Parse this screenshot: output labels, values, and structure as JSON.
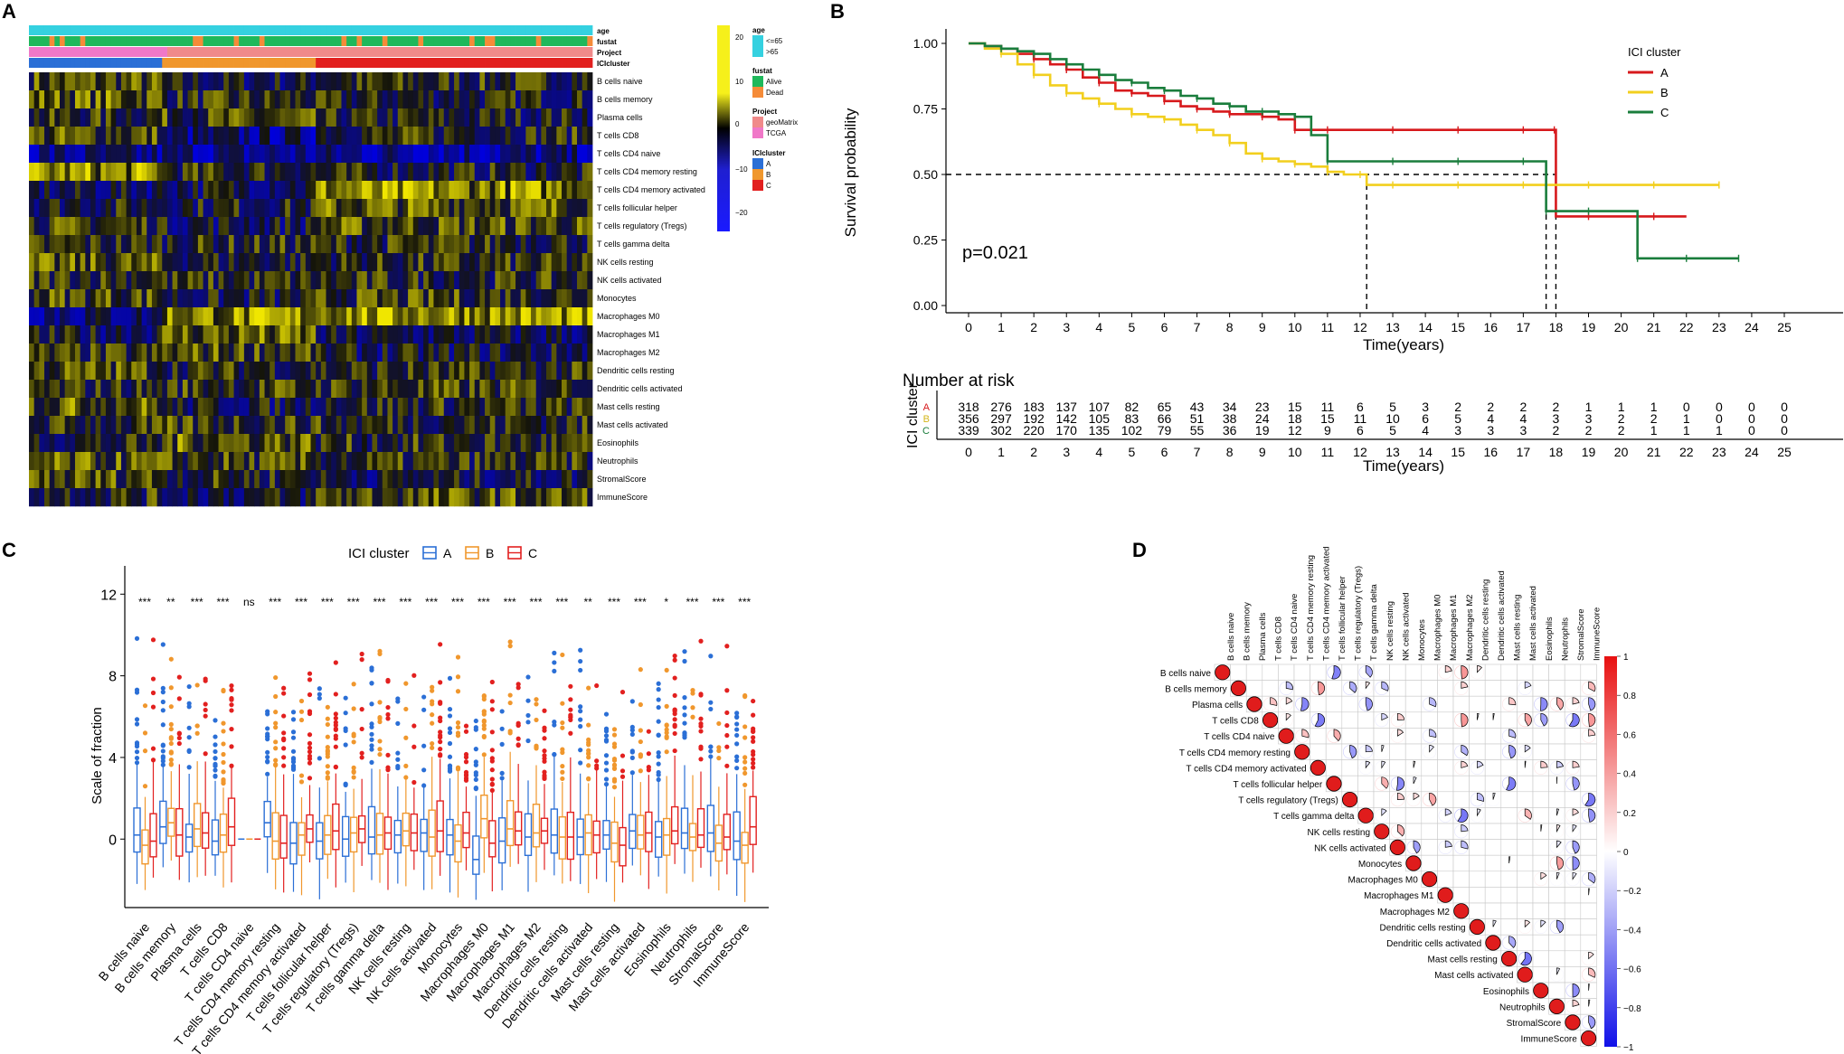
{
  "panel_labels": {
    "a": "A",
    "b": "B",
    "c": "C",
    "d": "D"
  },
  "colors": {
    "A": "#d7191c",
    "B": "#f2cf1e",
    "C": "#1a7d3c",
    "boxA": "#2b6fd6",
    "boxB": "#f0972d",
    "boxC": "#e2201f",
    "age1": "#35d1e0",
    "age2": "#16b5b5",
    "alive": "#1fb85b",
    "dead": "#f58b38",
    "geo": "#f08a8a",
    "tcga": "#f078c8"
  },
  "chart_data": [
    {
      "id": "A",
      "type": "heatmap",
      "annotation_rows": [
        "age",
        "fustat",
        "Project",
        "ICIcluster"
      ],
      "rows": [
        "B cells naive",
        "B cells memory",
        "Plasma cells",
        "T cells CD8",
        "T cells CD4 naive",
        "T cells CD4 memory resting",
        "T cells CD4 memory activated",
        "T cells follicular helper",
        "T cells regulatory (Tregs)",
        "T cells gamma delta",
        "NK cells resting",
        "NK cells activated",
        "Monocytes",
        "Macrophages M0",
        "Macrophages M1",
        "Macrophages M2",
        "Dendritic cells resting",
        "Dendritic cells activated",
        "Mast cells resting",
        "Mast cells activated",
        "Eosinophils",
        "Neutrophils",
        "StromalScore",
        "ImmuneScore"
      ],
      "colorbar_ticks": [
        "20",
        "10",
        "0",
        "−10",
        "−20"
      ],
      "legend": {
        "age": {
          "title": "age",
          "items": [
            "<=65",
            ">65"
          ]
        },
        "fustat": {
          "title": "fustat",
          "items": [
            "Alive",
            "Dead"
          ]
        },
        "Project": {
          "title": "Project",
          "items": [
            "geoMatrix",
            "TCGA"
          ]
        },
        "ICIcluster": {
          "title": "ICIcluster",
          "items": [
            "A",
            "B",
            "C"
          ]
        }
      }
    },
    {
      "id": "B",
      "type": "line",
      "ylabel": "Survival probability",
      "xlabel": "Time(years)",
      "xlim": [
        0,
        25
      ],
      "ylim": [
        0,
        1
      ],
      "yticks": [
        "0.00",
        "0.25",
        "0.50",
        "0.75",
        "1.00"
      ],
      "xticks": [
        "0",
        "1",
        "2",
        "3",
        "4",
        "5",
        "6",
        "7",
        "8",
        "9",
        "10",
        "11",
        "12",
        "13",
        "14",
        "15",
        "16",
        "17",
        "18",
        "19",
        "20",
        "21",
        "22",
        "23",
        "24",
        "25"
      ],
      "pvalue": "p=0.021",
      "legend_title": "ICI cluster",
      "series": [
        {
          "name": "A",
          "x": [
            0,
            0.5,
            1,
            1.5,
            2,
            2.5,
            3,
            3.5,
            4,
            4.5,
            5,
            5.5,
            6,
            6.5,
            7,
            7.5,
            8,
            8.5,
            9,
            9.5,
            10,
            10.5,
            11,
            12,
            13,
            14,
            15,
            16,
            17,
            17.5,
            17.95,
            18,
            19,
            20,
            21,
            22
          ],
          "y": [
            1,
            0.99,
            0.98,
            0.96,
            0.94,
            0.92,
            0.9,
            0.87,
            0.85,
            0.82,
            0.81,
            0.8,
            0.78,
            0.76,
            0.75,
            0.74,
            0.73,
            0.73,
            0.72,
            0.71,
            0.67,
            0.67,
            0.67,
            0.67,
            0.67,
            0.67,
            0.67,
            0.67,
            0.67,
            0.67,
            0.67,
            0.34,
            0.34,
            0.34,
            0.34,
            0.34
          ]
        },
        {
          "name": "B",
          "x": [
            0,
            0.5,
            1,
            1.5,
            2,
            2.5,
            3,
            3.5,
            4,
            4.5,
            5,
            5.5,
            6,
            6.5,
            7,
            7.5,
            8,
            8.5,
            9,
            9.5,
            10,
            10.5,
            11,
            11.5,
            12,
            12.2,
            13,
            14,
            15,
            16,
            17,
            18,
            19,
            20,
            21,
            22,
            23
          ],
          "y": [
            1,
            0.98,
            0.96,
            0.92,
            0.88,
            0.84,
            0.81,
            0.79,
            0.77,
            0.75,
            0.73,
            0.72,
            0.71,
            0.69,
            0.67,
            0.65,
            0.62,
            0.58,
            0.56,
            0.55,
            0.54,
            0.53,
            0.51,
            0.5,
            0.5,
            0.46,
            0.46,
            0.46,
            0.46,
            0.46,
            0.46,
            0.46,
            0.46,
            0.46,
            0.46,
            0.46,
            0.46
          ]
        },
        {
          "name": "C",
          "x": [
            0,
            0.5,
            1,
            1.5,
            2,
            2.5,
            3,
            3.5,
            4,
            4.5,
            5,
            5.5,
            6,
            6.5,
            7,
            7.5,
            8,
            8.5,
            9,
            9.5,
            10,
            10.5,
            11,
            12,
            13,
            14,
            15,
            16,
            17,
            17.5,
            17.7,
            18,
            19,
            20,
            20.5,
            21,
            22,
            23,
            23.6
          ],
          "y": [
            1,
            0.99,
            0.98,
            0.97,
            0.96,
            0.94,
            0.92,
            0.9,
            0.88,
            0.86,
            0.85,
            0.83,
            0.82,
            0.8,
            0.79,
            0.77,
            0.76,
            0.74,
            0.74,
            0.73,
            0.72,
            0.65,
            0.55,
            0.55,
            0.55,
            0.55,
            0.55,
            0.55,
            0.55,
            0.55,
            0.36,
            0.36,
            0.36,
            0.36,
            0.18,
            0.18,
            0.18,
            0.18,
            0.18
          ]
        }
      ],
      "median_line": {
        "y": 0.5,
        "x_end": 18.0,
        "drops": [
          12.2,
          17.7,
          18.0
        ]
      },
      "risk_table": {
        "title": "Number at risk",
        "ylabel": "ICI cluster",
        "xlabel": "Time(years)",
        "rows": [
          {
            "label": "A",
            "values": [
              318,
              276,
              183,
              137,
              107,
              82,
              65,
              43,
              34,
              23,
              15,
              11,
              6,
              5,
              3,
              2,
              2,
              2,
              2,
              1,
              1,
              1,
              0,
              0,
              0,
              0
            ]
          },
          {
            "label": "B",
            "values": [
              356,
              297,
              192,
              142,
              105,
              83,
              66,
              51,
              38,
              24,
              18,
              15,
              11,
              10,
              6,
              5,
              4,
              4,
              3,
              3,
              2,
              2,
              1,
              0,
              0,
              0
            ]
          },
          {
            "label": "C",
            "values": [
              339,
              302,
              220,
              170,
              135,
              102,
              79,
              55,
              36,
              19,
              12,
              9,
              6,
              5,
              4,
              3,
              3,
              3,
              2,
              2,
              2,
              1,
              1,
              1,
              0,
              0
            ]
          }
        ]
      }
    },
    {
      "id": "C",
      "type": "box",
      "legend_title": "ICI cluster",
      "legend_items": [
        "A",
        "B",
        "C"
      ],
      "ylabel": "Scale of fraction",
      "ylim": [
        -3,
        12.5
      ],
      "yticks": [
        "0",
        "4",
        "8",
        "12"
      ],
      "categories": [
        "B cells naive",
        "B cells memory",
        "Plasma cells",
        "T cells CD8",
        "T cells CD4 naive",
        "T cells CD4 memory resting",
        "T cells CD4 memory activated",
        "T cells follicular helper",
        "T cells regulatory (Tregs)",
        "T cells gamma delta",
        "NK cells resting",
        "NK cells activated",
        "Monocytes",
        "Macrophages M0",
        "Macrophages M1",
        "Macrophages M2",
        "Dendritic cells resting",
        "Dendritic cells activated",
        "Mast cells resting",
        "Mast cells activated",
        "Eosinophils",
        "Neutrophils",
        "StromalScore",
        "ImmuneScore"
      ],
      "significance": [
        "***",
        "**",
        "***",
        "***",
        "ns",
        "***",
        "***",
        "***",
        "***",
        "***",
        "***",
        "***",
        "***",
        "***",
        "***",
        "***",
        "***",
        "**",
        "***",
        "***",
        "*",
        "***",
        "***",
        "***"
      ],
      "medians": [
        [
          0.2,
          -0.3,
          -0.1
        ],
        [
          0.6,
          0.8,
          0.2
        ],
        [
          0.1,
          0.5,
          0.3
        ],
        [
          -0.1,
          0.2,
          0.6
        ],
        [
          0,
          0,
          0
        ],
        [
          0.8,
          -0.1,
          -0.2
        ],
        [
          -0.2,
          0.2,
          0.5
        ],
        [
          -0.1,
          0.2,
          0.4
        ],
        [
          0,
          0.3,
          0.5
        ],
        [
          0.1,
          0.2,
          0.3
        ],
        [
          0.2,
          0.4,
          0.3
        ],
        [
          0.3,
          0.1,
          0.4
        ],
        [
          0.2,
          -0.1,
          0.3
        ],
        [
          -1.0,
          1.0,
          -0.2
        ],
        [
          -0.1,
          0.5,
          0.4
        ],
        [
          0.1,
          0.3,
          0.4
        ],
        [
          0.2,
          0.1,
          0.1
        ],
        [
          0.1,
          0.3,
          0.2
        ],
        [
          0.2,
          -0.2,
          -0.3
        ],
        [
          0.4,
          0.2,
          0.3
        ],
        [
          0.1,
          0.2,
          0.4
        ],
        [
          0.3,
          0.1,
          0.2
        ],
        [
          0.3,
          -0.2,
          0.1
        ],
        [
          -0.1,
          -0.3,
          0.6
        ]
      ]
    },
    {
      "id": "D",
      "type": "heatmap",
      "variables": [
        "B cells naive",
        "B cells memory",
        "Plasma cells",
        "T cells CD8",
        "T cells CD4 naive",
        "T cells CD4 memory resting",
        "T cells CD4 memory activated",
        "T cells follicular helper",
        "T cells regulatory (Tregs)",
        "T cells gamma delta",
        "NK cells resting",
        "NK cells activated",
        "Monocytes",
        "Macrophages M0",
        "Macrophages M1",
        "Macrophages M2",
        "Dendritic cells resting",
        "Dendritic cells activated",
        "Mast cells resting",
        "Mast cells activated",
        "Eosinophils",
        "Neutrophils",
        "StromalScore",
        "ImmuneScore"
      ],
      "colorbar_ticks": [
        "1",
        "0.8",
        "0.6",
        "0.4",
        "0.2",
        "0",
        "−0.2",
        "−0.4",
        "−0.6",
        "−0.8",
        "−1"
      ]
    }
  ]
}
